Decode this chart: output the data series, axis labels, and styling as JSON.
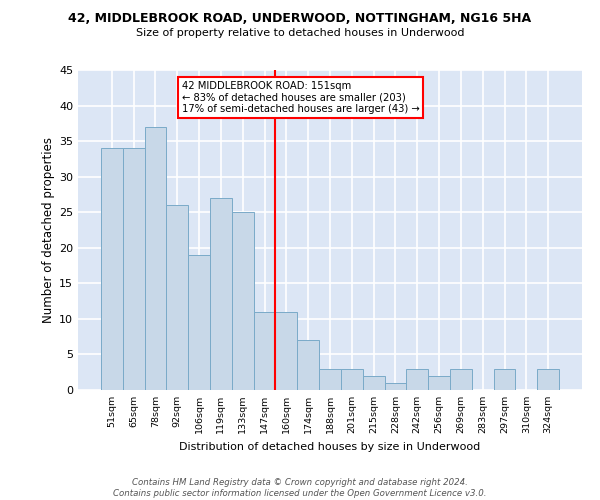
{
  "title1": "42, MIDDLEBROOK ROAD, UNDERWOOD, NOTTINGHAM, NG16 5HA",
  "title2": "Size of property relative to detached houses in Underwood",
  "xlabel": "Distribution of detached houses by size in Underwood",
  "ylabel": "Number of detached properties",
  "bar_color": "#c8d8e8",
  "bar_edge_color": "#7aaac8",
  "bg_color": "#dce6f5",
  "grid_color": "white",
  "categories": [
    "51sqm",
    "65sqm",
    "78sqm",
    "92sqm",
    "106sqm",
    "119sqm",
    "133sqm",
    "147sqm",
    "160sqm",
    "174sqm",
    "188sqm",
    "201sqm",
    "215sqm",
    "228sqm",
    "242sqm",
    "256sqm",
    "269sqm",
    "283sqm",
    "297sqm",
    "310sqm",
    "324sqm"
  ],
  "values": [
    34,
    34,
    37,
    26,
    19,
    27,
    25,
    11,
    11,
    7,
    3,
    3,
    2,
    1,
    3,
    2,
    3,
    0,
    3,
    0,
    3
  ],
  "vline_x": 7.5,
  "vline_color": "red",
  "annotation_title": "42 MIDDLEBROOK ROAD: 151sqm",
  "annotation_line1": "← 83% of detached houses are smaller (203)",
  "annotation_line2": "17% of semi-detached houses are larger (43) →",
  "annotation_box_color": "white",
  "annotation_box_edge_color": "red",
  "footer1": "Contains HM Land Registry data © Crown copyright and database right 2024.",
  "footer2": "Contains public sector information licensed under the Open Government Licence v3.0.",
  "ylim": [
    0,
    45
  ],
  "yticks": [
    0,
    5,
    10,
    15,
    20,
    25,
    30,
    35,
    40,
    45
  ]
}
